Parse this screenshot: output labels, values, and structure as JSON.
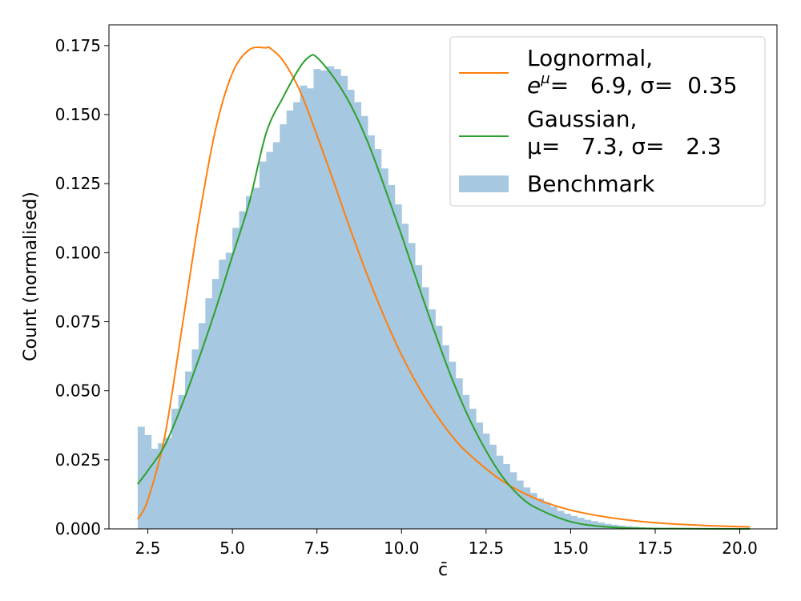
{
  "chart_data": {
    "type": "bar",
    "xlabel": "c̄",
    "ylabel": "Count (normalised)",
    "xlim": [
      1.35,
      21.1
    ],
    "ylim": [
      0,
      0.1825
    ],
    "grid": false,
    "legend_position": "top-right",
    "x_ticks": [
      2.5,
      5.0,
      7.5,
      10.0,
      12.5,
      15.0,
      17.5,
      20.0
    ],
    "x_tick_labels": [
      "2.5",
      "5.0",
      "7.5",
      "10.0",
      "12.5",
      "15.0",
      "17.5",
      "20.0"
    ],
    "y_ticks": [
      0.0,
      0.025,
      0.05,
      0.075,
      0.1,
      0.125,
      0.15,
      0.175
    ],
    "y_tick_labels": [
      "0.000",
      "0.025",
      "0.050",
      "0.075",
      "0.100",
      "0.125",
      "0.150",
      "0.175"
    ],
    "histogram": {
      "name": "Benchmark",
      "color": "#a6c8e0",
      "bin_start": 2.2,
      "bin_width": 0.2,
      "values": [
        0.037,
        0.034,
        0.029,
        0.031,
        0.033,
        0.0435,
        0.0485,
        0.057,
        0.065,
        0.0745,
        0.0835,
        0.0905,
        0.0975,
        0.1,
        0.109,
        0.115,
        0.1205,
        0.1235,
        0.133,
        0.1365,
        0.14,
        0.1465,
        0.1515,
        0.1545,
        0.1605,
        0.1595,
        0.1665,
        0.166,
        0.1675,
        0.1665,
        0.164,
        0.159,
        0.1545,
        0.1495,
        0.1425,
        0.1375,
        0.1305,
        0.1245,
        0.1175,
        0.1105,
        0.1035,
        0.0955,
        0.0875,
        0.0795,
        0.0735,
        0.0665,
        0.0605,
        0.0545,
        0.0485,
        0.0435,
        0.0385,
        0.0345,
        0.0305,
        0.0265,
        0.0235,
        0.0205,
        0.0175,
        0.015,
        0.013,
        0.011,
        0.0095,
        0.008,
        0.0065,
        0.0055,
        0.0047,
        0.004,
        0.0033,
        0.0028,
        0.0023,
        0.0018,
        0.0015,
        0.0012,
        0.001,
        0.0008,
        0.0006,
        0.0005,
        0.0004,
        0.0003,
        0.00025,
        0.0002,
        0.00015,
        0.00012,
        0.0001,
        0.0001,
        8e-05,
        6e-05,
        5e-05,
        4e-05,
        3e-05,
        3e-05,
        2e-05,
        2e-05
      ]
    },
    "series": [
      {
        "name": "Lognormal, e^μ= 6.9, σ= 0.35",
        "type": "line",
        "color": "#ff7f0e",
        "x": [
          2.2,
          2.5,
          3.0,
          3.5,
          4.0,
          4.5,
          5.0,
          5.5,
          6.0,
          6.1,
          6.5,
          7.0,
          7.5,
          8.0,
          8.5,
          9.0,
          9.5,
          10.0,
          10.5,
          11.0,
          11.5,
          12.0,
          13.0,
          14.0,
          15.0,
          16.0,
          17.0,
          18.0,
          19.0,
          20.3
        ],
        "y": [
          0.0035,
          0.0105,
          0.0335,
          0.072,
          0.1115,
          0.1445,
          0.165,
          0.1735,
          0.1742,
          0.1742,
          0.1695,
          0.1585,
          0.1425,
          0.1255,
          0.108,
          0.0915,
          0.0765,
          0.063,
          0.0515,
          0.0418,
          0.0335,
          0.027,
          0.0172,
          0.0108,
          0.0068,
          0.0044,
          0.0028,
          0.0018,
          0.0012,
          0.0007
        ]
      },
      {
        "name": "Gaussian, μ= 7.3, σ= 2.3",
        "type": "line",
        "color": "#2ca02c",
        "x": [
          2.2,
          2.5,
          3.0,
          3.5,
          4.0,
          4.5,
          5.0,
          5.5,
          6.0,
          6.5,
          7.0,
          7.3,
          7.5,
          8.0,
          8.5,
          9.0,
          9.5,
          10.0,
          10.5,
          11.0,
          11.5,
          12.0,
          12.5,
          13.0,
          13.5,
          14.0,
          15.0,
          16.0,
          17.0,
          18.0,
          20.3
        ],
        "y": [
          0.0162,
          0.0211,
          0.0302,
          0.0446,
          0.0613,
          0.0793,
          0.0988,
          0.1182,
          0.1434,
          0.1563,
          0.1672,
          0.1712,
          0.1707,
          0.1634,
          0.1534,
          0.1401,
          0.1237,
          0.1064,
          0.0882,
          0.0706,
          0.0541,
          0.04,
          0.0283,
          0.0186,
          0.0118,
          0.0075,
          0.0026,
          0.0008,
          0.0002,
          0.0001,
          0.0
        ]
      }
    ],
    "legend": {
      "lognormal": {
        "line1": "Lognormal,",
        "eq_base": "e",
        "eq_sup": "μ",
        "eq_rest": "=   6.9, σ=  0.35"
      },
      "gaussian": {
        "line1": "Gaussian,",
        "eq": "μ=   7.3, σ=   2.3"
      },
      "benchmark": "Benchmark"
    }
  }
}
